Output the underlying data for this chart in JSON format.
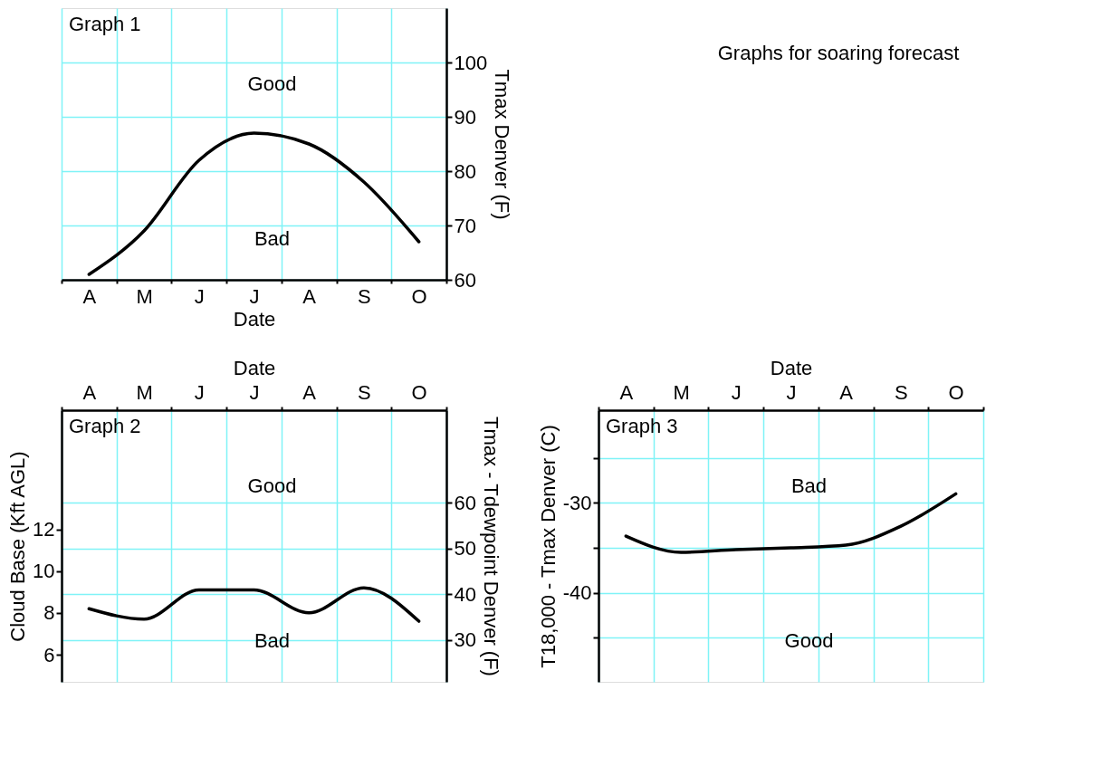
{
  "chart_data": [
    {
      "type": "line",
      "title": "Graph 1",
      "xlabel": "Date",
      "ylabel": "Tmax Denver (F)",
      "categories": [
        "A",
        "M",
        "J",
        "J",
        "A",
        "S",
        "O"
      ],
      "ylim": [
        60,
        110
      ],
      "yticks": [
        60,
        70,
        80,
        90,
        100
      ],
      "grid": true,
      "line_style": "solid",
      "series": [
        {
          "color": "#000000",
          "values": [
            61,
            69,
            82,
            87,
            85,
            78,
            67
          ]
        }
      ],
      "annotations": [
        "Good",
        "Bad",
        "Graphs for soaring forecast"
      ]
    },
    {
      "type": "line",
      "title": "Graph 2",
      "xlabel": "Date",
      "ylabel": "Cloud Base (Kft AGL)",
      "y2label": "Tmax - Tdewpoint Denver (F)",
      "categories": [
        "A",
        "M",
        "J",
        "J",
        "A",
        "S",
        "O"
      ],
      "ylim": [
        4.7,
        17.7
      ],
      "yticks": [
        6,
        8,
        10,
        12
      ],
      "y2lim": [
        20.9,
        80.2
      ],
      "y2ticks": [
        30,
        40,
        50,
        60
      ],
      "grid": true,
      "line_style": "solid",
      "series": [
        {
          "color": "#000000",
          "values": [
            8.2,
            7.7,
            9.1,
            9.1,
            8.0,
            9.2,
            7.6
          ]
        }
      ],
      "annotations": [
        "Good",
        "Bad"
      ]
    },
    {
      "type": "line",
      "title": "Graph 3",
      "xlabel": "Date",
      "ylabel": "T18,000 - Tmax Denver (C)",
      "categories": [
        "A",
        "M",
        "J",
        "J",
        "A",
        "S",
        "O"
      ],
      "ylim": [
        -49.9,
        -19.7
      ],
      "yticks": [
        {
          "value": -45,
          "label": null
        },
        -40,
        {
          "value": -35,
          "label": null
        },
        -30,
        {
          "value": -25,
          "label": null
        }
      ],
      "grid": true,
      "line_style": "solid",
      "series": [
        {
          "color": "#000000",
          "values": [
            -33.7,
            -35.5,
            -35.2,
            -35.0,
            -34.7,
            -32.6,
            -29.0
          ]
        }
      ],
      "annotations": [
        "Bad",
        "Good"
      ]
    }
  ]
}
